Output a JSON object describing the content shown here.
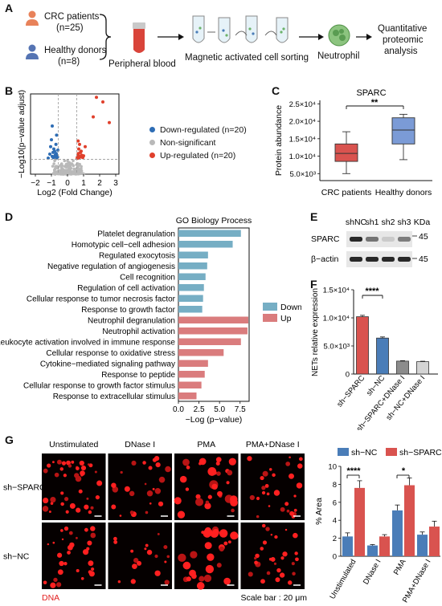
{
  "panels": {
    "A": {
      "label": "A",
      "group1": {
        "title": "CRC patients",
        "n": "(n=25)"
      },
      "group2": {
        "title": "Healthy donors",
        "n": "(n=8)"
      },
      "blood": "Peripheral blood",
      "macs": "Magnetic activated cell sorting",
      "neutrophil": "Neutrophil",
      "analysis_line1": "Quantitative",
      "analysis_line2": "proteomic",
      "analysis_line3": "analysis",
      "colors": {
        "crc": "#e8825a",
        "healthy": "#5574b3",
        "blood": "#d9443a",
        "neutrophil": "#6cb36a"
      }
    },
    "B": {
      "label": "B",
      "legend": [
        "Down-regulated (n=20)",
        "Non-significant",
        "Up-regulated (n=20)"
      ],
      "colors": {
        "down": "#2e6db5",
        "ns": "#b9b9b9",
        "up": "#e0402c"
      },
      "chart_data": {
        "type": "scatter",
        "xlabel": "Log2 (Fold Change)",
        "ylabel": "−Log10(p−value adjust)",
        "xticks": [
          "−2",
          "−1",
          "0",
          "1",
          "2",
          "3"
        ],
        "xlim": [
          -2.3,
          3.2
        ],
        "ylim": [
          0,
          7
        ],
        "thresholds": {
          "x": [
            -0.58,
            0.58
          ],
          "y": 1.3
        },
        "series": [
          {
            "name": "Down−regulated (n=20)",
            "points": [
              [
                -0.95,
                4.2
              ],
              [
                -1.05,
                2.4
              ],
              [
                -0.85,
                2.2
              ],
              [
                -0.8,
                2.0
              ],
              [
                -0.9,
                1.9
              ],
              [
                -0.7,
                1.8
              ],
              [
                -1.1,
                1.75
              ],
              [
                -0.75,
                1.7
              ],
              [
                -0.65,
                1.6
              ],
              [
                -1.0,
                3.0
              ],
              [
                -0.95,
                1.55
              ],
              [
                -0.6,
                2.1
              ],
              [
                -0.72,
                2.6
              ],
              [
                -0.88,
                1.45
              ],
              [
                -0.62,
                1.5
              ],
              [
                -1.2,
                1.4
              ],
              [
                -0.68,
                3.4
              ],
              [
                -0.78,
                1.6
              ],
              [
                -0.82,
                1.5
              ],
              [
                -0.66,
                1.42
              ]
            ]
          },
          {
            "name": "Up−regulated (n=20)",
            "points": [
              [
                1.8,
                6.7
              ],
              [
                2.2,
                6.3
              ],
              [
                1.6,
                5.0
              ],
              [
                2.6,
                4.5
              ],
              [
                0.75,
                2.6
              ],
              [
                0.7,
                2.2
              ],
              [
                0.8,
                1.9
              ],
              [
                0.65,
                1.7
              ],
              [
                0.9,
                1.5
              ],
              [
                0.72,
                1.4
              ],
              [
                1.0,
                1.6
              ],
              [
                0.68,
                1.8
              ],
              [
                0.85,
                2.0
              ],
              [
                0.62,
                1.5
              ],
              [
                0.95,
                1.45
              ],
              [
                1.1,
                2.4
              ],
              [
                0.78,
                1.55
              ],
              [
                0.66,
                2.9
              ],
              [
                0.88,
                1.65
              ],
              [
                0.6,
                1.38
              ]
            ]
          }
        ]
      }
    },
    "C": {
      "label": "C",
      "title": "SPARC",
      "sig": "**",
      "chart_data": {
        "type": "box",
        "categories": [
          "CRC patients",
          "Healthy donors"
        ],
        "ylabel": "Protein abundance",
        "yticks": [
          "5.0×10³",
          "1.0×10⁴",
          "1.5×10⁴",
          "2.0×10⁴",
          "2.5×10⁴"
        ],
        "ylim": [
          3000,
          26000
        ],
        "boxes": [
          {
            "name": "CRC patients",
            "min": 5000,
            "q1": 8500,
            "median": 10800,
            "q3": 13500,
            "max": 17000,
            "color": "#d9534f"
          },
          {
            "name": "Healthy donors",
            "min": 9000,
            "q1": 13500,
            "median": 17500,
            "q3": 21000,
            "max": 22000,
            "color": "#7b9bd6"
          }
        ]
      }
    },
    "D": {
      "label": "D",
      "title": "GO Biology Process",
      "legend": [
        "Down",
        "Up"
      ],
      "colors": {
        "down": "#76aec4",
        "up": "#da7c7d"
      },
      "chart_data": {
        "type": "bar",
        "orientation": "horizontal",
        "xlabel": "−Log (p−value)",
        "xticks": [
          "0.0",
          "2.5",
          "5.0",
          "7.5"
        ],
        "xlim": [
          0,
          8.6
        ],
        "categories": [
          "Platelet degranulation",
          "Homotypic cell−cell adhesion",
          "Regulated exocytosis",
          "Negative regulation of angiogenesis",
          "Cell recognition",
          "Regulation of cell activation",
          "Cellular response to tumor necrosis factor",
          "Response to growth factor",
          "Neutrophil degranulation",
          "Neutrophil activation",
          "Leukocyte activation involved in immune response",
          "Cellular response to oxidative stress",
          "Cytokine−mediated signaling pathway",
          "Response to peptide",
          "Cellular response to growth factor stimulus",
          "Response to extracellular stimulus"
        ],
        "values": [
          7.6,
          6.6,
          3.6,
          3.5,
          3.3,
          3.1,
          3.0,
          2.9,
          8.5,
          8.4,
          7.6,
          5.5,
          3.6,
          3.2,
          2.8,
          2.2
        ],
        "groups": [
          "Down",
          "Down",
          "Down",
          "Down",
          "Down",
          "Down",
          "Down",
          "Down",
          "Up",
          "Up",
          "Up",
          "Up",
          "Up",
          "Up",
          "Up",
          "Up"
        ]
      }
    },
    "E": {
      "label": "E",
      "lanes": [
        "shNC",
        "sh1",
        "sh2",
        "sh3"
      ],
      "kda_label": "KDa",
      "rows": [
        {
          "name": "SPARC",
          "kda": "45",
          "intensity": [
            1.0,
            0.55,
            0.05,
            0.5
          ]
        },
        {
          "name": "β−actin",
          "kda": "45",
          "intensity": [
            1.0,
            1.0,
            1.0,
            1.0
          ]
        }
      ]
    },
    "F": {
      "label": "F",
      "sig": "****",
      "chart_data": {
        "type": "bar",
        "ylabel": "NETs relative expression",
        "yticks": [
          "0",
          "5.0×10³",
          "1.0×10⁴",
          "1.5×10⁴"
        ],
        "ylim": [
          0,
          15000
        ],
        "categories": [
          "sh−SPARC",
          "sh−NC",
          "sh−SPARC+DNase I",
          "sh−NC+DNase I"
        ],
        "values": [
          10200,
          6400,
          2300,
          2200
        ],
        "errors": [
          250,
          200,
          80,
          80
        ],
        "colors": [
          "#d9534f",
          "#4a7db8",
          "#8c8c8c",
          "#d3d3d3"
        ]
      }
    },
    "G": {
      "label": "G",
      "col_labels": [
        "Unstimulated",
        "DNase I",
        "PMA",
        "PMA+DNase I"
      ],
      "row_labels": [
        "sh−SPARC",
        "sh−NC"
      ],
      "stain": "DNA",
      "scale_bar": "Scale bar : 20 μm",
      "legend": [
        "sh−NC",
        "sh−SPARC"
      ],
      "sig": [
        "****",
        "*"
      ],
      "chart_data": {
        "type": "bar",
        "ylabel": "% Area",
        "yticks": [
          "0",
          "2",
          "4",
          "6",
          "8",
          "10"
        ],
        "ylim": [
          0,
          10
        ],
        "categories": [
          "Unstimulated",
          "DNase I",
          "PMA",
          "PMA+DNase I"
        ],
        "series": [
          {
            "name": "sh−NC",
            "values": [
              2.2,
              1.2,
              5.1,
              2.4
            ],
            "errors": [
              0.4,
              0.1,
              0.6,
              0.3
            ],
            "color": "#4a7db8"
          },
          {
            "name": "sh−SPARC",
            "values": [
              7.6,
              2.2,
              7.9,
              3.3
            ],
            "errors": [
              0.8,
              0.2,
              0.8,
              0.6
            ],
            "color": "#d9534f"
          }
        ]
      }
    }
  }
}
